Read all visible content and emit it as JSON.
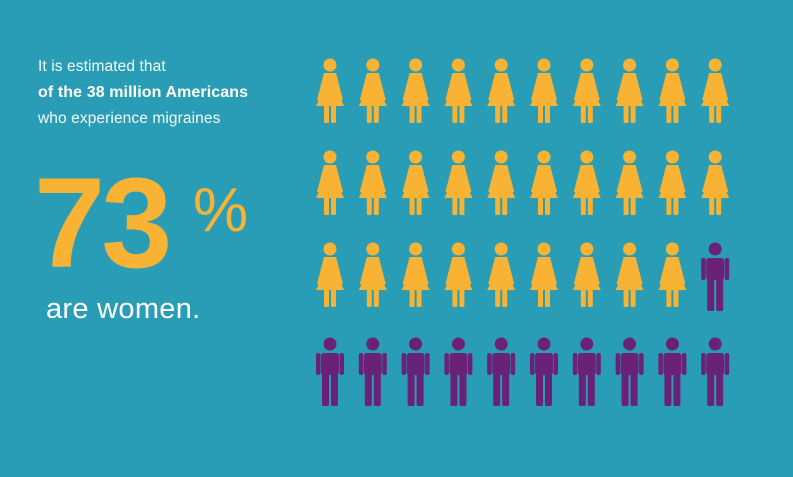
{
  "intro": {
    "line1": "It is estimated that",
    "line2": "of the 38 million Americans",
    "line3": "who experience migraines"
  },
  "stat": {
    "number": "73",
    "symbol": "%",
    "caption": "are women."
  },
  "icon_grid": {
    "total": 40,
    "women": 29,
    "men": 11,
    "per_row": 10
  },
  "colors": {
    "background": "#2a9db6",
    "women": "#f8b334",
    "men": "#6a2276",
    "text": "#ffffff"
  },
  "icons": {
    "women": "woman-icon",
    "men": "man-icon"
  }
}
